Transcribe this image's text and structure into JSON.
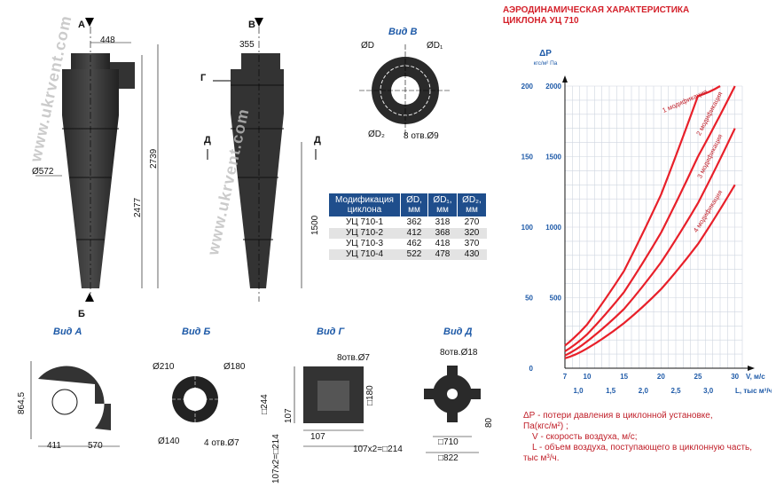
{
  "drawing": {
    "letters": {
      "a": "А",
      "b": "Б",
      "v": "В",
      "g": "Г",
      "d1": "Д",
      "d2": "Д",
      "d3": "Д"
    },
    "front": {
      "dim_top": "448",
      "dim_dia": "Ø572",
      "dim_h1": "2739",
      "dim_h2": "2477"
    },
    "side": {
      "dim_top": "355",
      "dim_h": "1500"
    },
    "watermark": "www.ukrvent.com",
    "view_v": {
      "title": "Вид В",
      "d": "ØD",
      "d1": "ØD₁",
      "d2": "ØD₂",
      "holes": "8 отв.Ø9"
    },
    "view_a": {
      "title": "Вид А",
      "h": "864,5",
      "w1": "411",
      "w2": "570"
    },
    "view_b": {
      "title": "Вид Б",
      "d1": "Ø210",
      "d2": "Ø180",
      "d3": "Ø140",
      "holes": "4 отв.Ø7"
    },
    "view_g": {
      "title": "Вид Г",
      "holes": "8отв.Ø7",
      "h1": "□244",
      "h2": "107",
      "h3": "107x2=□214",
      "w1": "□180",
      "w2": "107",
      "w3": "107x2=□214"
    },
    "view_d": {
      "title": "Вид Д",
      "holes": "8отв.Ø18",
      "w1": "□710",
      "w2": "□822",
      "h1": "80"
    }
  },
  "table": {
    "headers": [
      "Модификация циклона",
      "ØD, мм",
      "ØD₁, мм",
      "ØD₂, мм"
    ],
    "rows": [
      [
        "УЦ 710-1",
        "362",
        "318",
        "270"
      ],
      [
        "УЦ 710-2",
        "412",
        "368",
        "320"
      ],
      [
        "УЦ 710-3",
        "462",
        "418",
        "370"
      ],
      [
        "УЦ 710-4",
        "522",
        "478",
        "430"
      ]
    ]
  },
  "chart_data": {
    "type": "line",
    "title": "АЭРОДИНАМИЧЕСКАЯ ХАРАКТЕРИСТИКА ЦИКЛОНА УЦ 710",
    "ylabel": "ΔP",
    "yunits": "кгс/м²   Па",
    "xlabel": "V, м/с",
    "x2label": "L, тыс м³/ч",
    "x_ticks": [
      "7",
      "10",
      "15",
      "20",
      "25",
      "30"
    ],
    "x2_ticks": [
      "1,0",
      "1,5",
      "2,0",
      "2,5",
      "3,0"
    ],
    "y_ticks_kgs": [
      "0",
      "50",
      "100",
      "150",
      "200"
    ],
    "y_ticks_pa": [
      "500",
      "1000",
      "1500",
      "2000"
    ],
    "xlim": [
      7,
      31
    ],
    "ylim": [
      0,
      2000
    ],
    "line_color": "#e8202a",
    "series": [
      {
        "name": "1 модификация",
        "x": [
          7,
          10,
          15,
          20,
          25,
          28
        ],
        "y": [
          160,
          310,
          690,
          1230,
          1930,
          2000
        ]
      },
      {
        "name": "2 модификация",
        "x": [
          7,
          10,
          15,
          20,
          25,
          30
        ],
        "y": [
          120,
          240,
          540,
          960,
          1500,
          2000
        ]
      },
      {
        "name": "3 модификация",
        "x": [
          7,
          10,
          15,
          20,
          25,
          30
        ],
        "y": [
          90,
          190,
          420,
          750,
          1170,
          1700
        ]
      },
      {
        "name": "4 модификация",
        "x": [
          7,
          10,
          15,
          20,
          25,
          30
        ],
        "y": [
          70,
          140,
          320,
          560,
          880,
          1300
        ]
      }
    ]
  },
  "legend": {
    "line1": "ΔР - потери давления в циклонной установке,",
    "line2": "Па(кгс/м²) ;",
    "line3": "V - скорость воздуха, м/с;",
    "line4": "L - объем воздуха, поступающего в циклонную часть,",
    "line5": "тыс м³/ч."
  }
}
